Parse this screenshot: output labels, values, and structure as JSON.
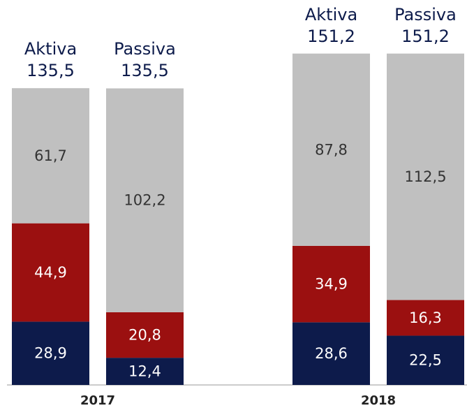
{
  "chart_data": {
    "type": "stacked-bar",
    "groups": [
      "2017",
      "2018"
    ],
    "categories": [
      "Aktiva",
      "Passiva",
      "Aktiva",
      "Passiva"
    ],
    "category_groups": [
      0,
      0,
      1,
      1
    ],
    "totals": [
      135.5,
      135.5,
      151.2,
      151.2
    ],
    "total_labels": [
      "135,5",
      "135,5",
      "151,2",
      "151,2"
    ],
    "series": [
      {
        "color": "#0d1b4b",
        "label_color": "#ffffff",
        "values": [
          28.9,
          12.4,
          28.6,
          22.5
        ],
        "value_labels": [
          "28,9",
          "12,4",
          "28,6",
          "22,5"
        ]
      },
      {
        "color": "#9b1010",
        "label_color": "#ffffff",
        "values": [
          44.9,
          20.8,
          34.9,
          16.3
        ],
        "value_labels": [
          "44,9",
          "20,8",
          "34,9",
          "16,3"
        ]
      },
      {
        "color": "#c0c0c0",
        "label_color": "#333333",
        "values": [
          61.7,
          102.2,
          87.8,
          112.5
        ],
        "value_labels": [
          "61,7",
          "102,2",
          "87,8",
          "112,5"
        ]
      }
    ]
  }
}
